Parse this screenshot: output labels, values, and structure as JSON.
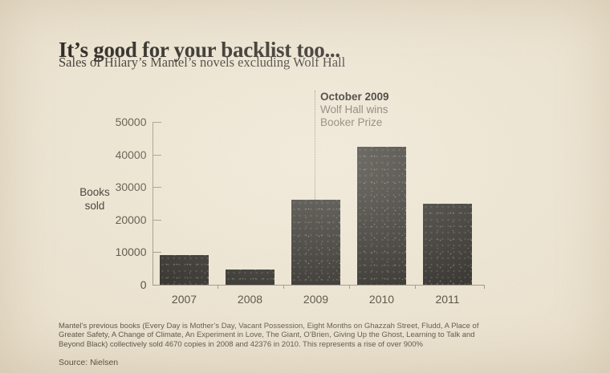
{
  "header": {
    "title": "It’s good for your backlist too...",
    "subtitle": "Sales of Hilary’s Mantel’s novels excluding Wolf Hall"
  },
  "chart_data": {
    "type": "bar",
    "title": "It’s good for your backlist too...",
    "subtitle": "Sales of Hilary’s Mantel’s novels excluding Wolf Hall",
    "categories": [
      "2007",
      "2008",
      "2009",
      "2010",
      "2011"
    ],
    "values": [
      9000,
      4670,
      26000,
      42376,
      25000
    ],
    "xlabel": "",
    "ylabel": "Books sold",
    "ylabel_lines": [
      "Books",
      "sold"
    ],
    "ylim": [
      0,
      50000
    ],
    "yticks": [
      0,
      10000,
      20000,
      30000,
      40000,
      50000
    ],
    "grid": false,
    "legend": "none",
    "bar_color": "#23211d",
    "annotation": {
      "category": "2009",
      "title": "October 2009",
      "lines": [
        "Wolf Hall wins",
        "Booker Prize"
      ]
    }
  },
  "footer": {
    "note": "Mantel’s previous books (Every Day is Mother’s Day, Vacant Possession, Eight Months on Ghazzah Street, Fludd, A Place of Greater Safety, A Change of Climate, An Experiment in Love, The Giant, O’Brien, Giving Up the Ghost, Learning to Talk and Beyond Black) collectively sold 4670 copies in 2008 and 42376 in 2010. This represents a rise of over 900%",
    "source": "Source: Nielsen"
  },
  "colors": {
    "background": "#ece3d0",
    "bar": "#23211d",
    "axis": "#9a9282",
    "title_text": "#23211c",
    "annotation_muted": "#6e6759"
  }
}
